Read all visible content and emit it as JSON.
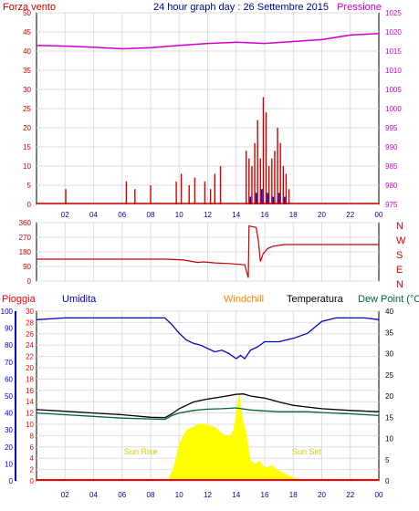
{
  "header": {
    "left_label": "Forza vento",
    "title": "24 hour graph day : 26 Settembre 2015",
    "right_label": "Pressione"
  },
  "colors": {
    "wind": "#cc0000",
    "pressure": "#cc00cc",
    "title": "#000099",
    "humidity": "#0000cc",
    "windchill": "#ff8800",
    "temperature": "#000000",
    "dewpoint": "#006633",
    "rain": "#ff0000",
    "solar": "#ffff00",
    "sun_label": "#cccc00",
    "grid": "#dddddd"
  },
  "chart_data": [
    {
      "type": "line",
      "name": "wind-pressure",
      "x_ticks": [
        "02",
        "04",
        "06",
        "08",
        "10",
        "12",
        "14",
        "16",
        "18",
        "20",
        "22",
        "00"
      ],
      "left_axis": {
        "label": "Forza vento",
        "range": [
          0,
          50
        ],
        "ticks": [
          0,
          5,
          10,
          15,
          20,
          25,
          30,
          35,
          40,
          45,
          50
        ]
      },
      "right_axis": {
        "label": "Pressione",
        "range": [
          975,
          1025
        ],
        "ticks": [
          975,
          980,
          985,
          990,
          995,
          1000,
          1005,
          1010,
          1015,
          1020,
          1025
        ]
      },
      "series": [
        {
          "name": "Pressione",
          "axis": "right",
          "x": [
            0,
            2,
            4,
            6,
            8,
            10,
            12,
            14,
            16,
            18,
            20,
            22,
            24
          ],
          "y": [
            1016.5,
            1016.3,
            1016.0,
            1015.6,
            1015.9,
            1016.5,
            1017.0,
            1017.3,
            1017.0,
            1017.5,
            1018.0,
            1019.2,
            1019.6
          ]
        },
        {
          "name": "Forza vento",
          "axis": "left",
          "kind": "bars",
          "x": [
            2.05,
            6.3,
            6.9,
            8.0,
            9.8,
            10.15,
            10.7,
            11.1,
            11.8,
            12.2,
            12.5,
            12.9,
            14.7,
            14.9,
            15.1,
            15.3,
            15.5,
            15.7,
            15.9,
            16.1,
            16.3,
            16.5,
            16.7,
            16.9,
            17.1,
            17.3,
            17.5,
            17.7
          ],
          "y": [
            4,
            6,
            4,
            5,
            6,
            8,
            5,
            7,
            6,
            4,
            8,
            10,
            14,
            12,
            10,
            16,
            22,
            12,
            28,
            24,
            10,
            12,
            14,
            20,
            16,
            10,
            8,
            4
          ]
        },
        {
          "name": "Raffica",
          "axis": "left",
          "kind": "bars",
          "x": [
            15.0,
            15.4,
            15.8,
            16.2,
            16.6,
            17.0,
            17.4
          ],
          "y": [
            2,
            3,
            4,
            3,
            2,
            3,
            2
          ]
        }
      ]
    },
    {
      "type": "line",
      "name": "wind-direction",
      "x_ticks": [
        "02",
        "04",
        "06",
        "08",
        "10",
        "12",
        "14",
        "16",
        "18",
        "20",
        "22",
        "00"
      ],
      "left_axis": {
        "range": [
          0,
          360
        ],
        "ticks": [
          0,
          90,
          180,
          270,
          360
        ]
      },
      "right_axis": {
        "labels": [
          "N",
          "W",
          "S",
          "E",
          "N"
        ]
      },
      "series": [
        {
          "name": "direzione",
          "x": [
            0,
            9.0,
            9.8,
            10.3,
            11.3,
            11.7,
            12.5,
            13.5,
            14.6,
            14.85,
            14.9,
            15.4,
            15.55,
            15.7,
            15.9,
            16.2,
            16.6,
            17.4,
            18.5,
            24
          ],
          "y": [
            135,
            135,
            132,
            130,
            115,
            118,
            112,
            108,
            100,
            20,
            340,
            330,
            250,
            120,
            170,
            200,
            215,
            225,
            225,
            225
          ]
        }
      ]
    },
    {
      "type": "line",
      "name": "rain-humidity-temperature",
      "x_ticks": [
        "02",
        "04",
        "06",
        "08",
        "10",
        "12",
        "14",
        "16",
        "18",
        "20",
        "22",
        "00"
      ],
      "legend": [
        "Pioggia",
        "Umidita",
        "Windchill",
        "Temperatura",
        "Dew Point (°C"
      ],
      "humidity_axis": {
        "range": [
          0,
          100
        ],
        "ticks": [
          0,
          10,
          20,
          30,
          40,
          50,
          60,
          70,
          80,
          90,
          100
        ]
      },
      "rain_axis": {
        "range": [
          0,
          30
        ],
        "ticks": [
          0,
          2,
          4,
          6,
          8,
          10,
          12,
          14,
          16,
          18,
          20,
          22,
          24,
          26,
          28,
          30
        ]
      },
      "temperature_axis": {
        "range": [
          0,
          40
        ],
        "ticks": [
          0,
          5,
          10,
          15,
          20,
          25,
          30,
          35,
          40
        ]
      },
      "annotations": [
        "Sun Rise",
        "Sun Set"
      ],
      "series": [
        {
          "name": "Umidita",
          "axis": "humidity",
          "x": [
            0,
            1,
            2,
            3,
            4,
            5,
            6,
            7,
            8,
            9,
            9.5,
            10,
            10.5,
            11,
            11.5,
            12,
            12.5,
            13,
            13.5,
            14,
            14.3,
            14.6,
            15,
            15.5,
            16,
            17,
            18,
            19,
            20,
            21,
            22,
            23,
            24
          ],
          "y": [
            95,
            95.5,
            96,
            96,
            96,
            96,
            96,
            96,
            96,
            96,
            92,
            87,
            83,
            81,
            80,
            78,
            76,
            77,
            75,
            72,
            74,
            72,
            77,
            79,
            82,
            82,
            84,
            87,
            94,
            96,
            96,
            96,
            95
          ]
        },
        {
          "name": "Temperatura",
          "axis": "temperature",
          "x": [
            0,
            2,
            4,
            6,
            8,
            9,
            9.5,
            10,
            11,
            12,
            13,
            14,
            14.5,
            15,
            16,
            17,
            18,
            19,
            20,
            22,
            24
          ],
          "y": [
            16.8,
            16.4,
            16.0,
            15.6,
            15.0,
            14.9,
            15.8,
            17.0,
            18.6,
            19.3,
            19.8,
            20.4,
            20.5,
            20.0,
            19.5,
            18.6,
            17.8,
            17.4,
            17.0,
            16.6,
            16.3
          ]
        },
        {
          "name": "Dew Point (°C",
          "axis": "temperature",
          "x": [
            0,
            2,
            4,
            6,
            8,
            9,
            9.5,
            10,
            11,
            12,
            13,
            14,
            15,
            16,
            17,
            18,
            19,
            20,
            22,
            24
          ],
          "y": [
            16.0,
            15.6,
            15.2,
            14.8,
            14.6,
            14.5,
            15.4,
            16.0,
            16.6,
            16.9,
            17.0,
            17.2,
            16.7,
            16.5,
            16.3,
            16.3,
            16.3,
            16.1,
            15.8,
            15.4
          ]
        },
        {
          "name": "Pioggia",
          "axis": "rain",
          "x": [
            0,
            24
          ],
          "y": [
            0,
            0
          ]
        },
        {
          "name": "solare",
          "axis": "humidity",
          "kind": "area",
          "x": [
            9.3,
            9.6,
            10,
            10.5,
            11,
            11.5,
            12,
            12.5,
            13,
            13.5,
            13.8,
            14.0,
            14.2,
            14.4,
            14.7,
            15.0,
            15.3,
            15.6,
            16,
            16.5,
            17,
            17.5,
            18,
            18.5,
            19
          ],
          "y": [
            2,
            8,
            22,
            30,
            32,
            34,
            33,
            32,
            28,
            26,
            30,
            40,
            53,
            38,
            29,
            12,
            10,
            12,
            8,
            9,
            6,
            4,
            2,
            1,
            0
          ]
        }
      ]
    }
  ]
}
